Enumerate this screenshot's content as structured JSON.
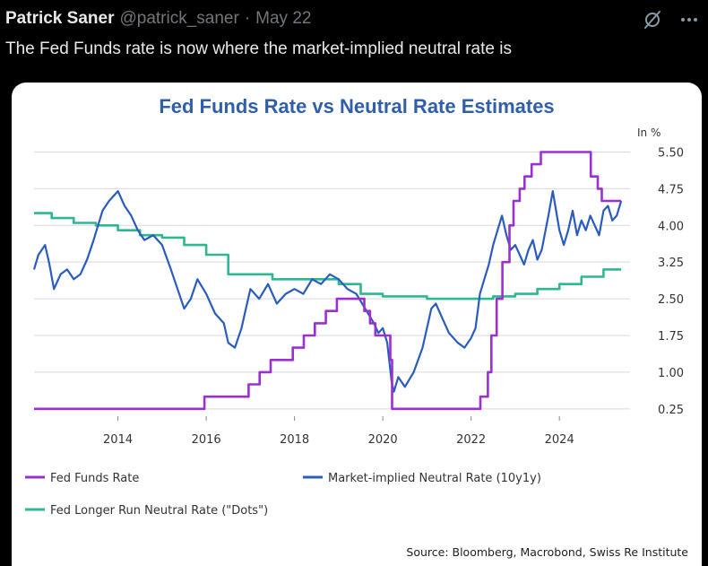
{
  "post": {
    "author_name": "Patrick Saner",
    "handle": "@patrick_saner",
    "separator": "·",
    "date": "May 22",
    "text": "The Fed Funds rate is now where the market-implied neutral rate is"
  },
  "icons": {
    "grok": "grok-slash-icon",
    "more": "more-dots-icon"
  },
  "colors": {
    "background": "#000000",
    "title": "#2f5fa8",
    "fed_funds": "#9b30d0",
    "market_implied": "#2a5cbf",
    "dots": "#2db893",
    "grid": "#d9d9d9"
  },
  "chart_data": {
    "type": "line",
    "title": "Fed Funds Rate vs Neutral Rate Estimates",
    "unit_label": "In %",
    "xlim": [
      2012.1,
      2025.6
    ],
    "ylim": [
      0.1,
      5.6
    ],
    "x_ticks": [
      "2014",
      "2016",
      "2018",
      "2020",
      "2022",
      "2024"
    ],
    "y_ticks": [
      "5.50",
      "4.75",
      "4.00",
      "3.25",
      "2.50",
      "1.75",
      "1.00",
      "0.25"
    ],
    "grid": "horizontal",
    "legend_position": "bottom",
    "source": "Source: Bloomberg, Macrobond, Swiss Re Institute",
    "series": [
      {
        "name": "Fed Funds Rate",
        "color": "#9b30d0",
        "step": true,
        "x": [
          2012.1,
          2015.96,
          2016.96,
          2017.21,
          2017.46,
          2017.96,
          2018.21,
          2018.46,
          2018.71,
          2018.96,
          2019.58,
          2019.71,
          2019.83,
          2020.17,
          2020.21,
          2022.21,
          2022.38,
          2022.46,
          2022.58,
          2022.71,
          2022.87,
          2022.96,
          2023.1,
          2023.21,
          2023.37,
          2023.58,
          2024.71,
          2024.87,
          2024.96,
          2025.4
        ],
        "y": [
          0.25,
          0.5,
          0.75,
          1.0,
          1.25,
          1.5,
          1.75,
          2.0,
          2.25,
          2.5,
          2.25,
          2.0,
          1.75,
          1.25,
          0.25,
          0.5,
          1.0,
          1.75,
          2.5,
          3.25,
          4.0,
          4.5,
          4.75,
          5.0,
          5.25,
          5.5,
          5.0,
          4.75,
          4.5,
          4.5
        ]
      },
      {
        "name": "Market-implied Neutral Rate (10y1y)",
        "color": "#2a5cbf",
        "step": false,
        "x": [
          2012.1,
          2012.2,
          2012.35,
          2012.45,
          2012.55,
          2012.7,
          2012.85,
          2013.0,
          2013.15,
          2013.3,
          2013.45,
          2013.55,
          2013.65,
          2013.8,
          2014.0,
          2014.15,
          2014.3,
          2014.45,
          2014.6,
          2014.8,
          2015.0,
          2015.2,
          2015.35,
          2015.5,
          2015.65,
          2015.8,
          2016.0,
          2016.2,
          2016.4,
          2016.5,
          2016.65,
          2016.8,
          2016.9,
          2017.0,
          2017.2,
          2017.4,
          2017.6,
          2017.8,
          2018.0,
          2018.2,
          2018.4,
          2018.6,
          2018.8,
          2019.0,
          2019.2,
          2019.4,
          2019.6,
          2019.8,
          2019.9,
          2020.0,
          2020.1,
          2020.2,
          2020.25,
          2020.35,
          2020.5,
          2020.7,
          2020.9,
          2021.1,
          2021.2,
          2021.35,
          2021.5,
          2021.7,
          2021.85,
          2022.0,
          2022.1,
          2022.2,
          2022.3,
          2022.4,
          2022.5,
          2022.6,
          2022.7,
          2022.8,
          2022.9,
          2023.0,
          2023.1,
          2023.2,
          2023.3,
          2023.4,
          2023.5,
          2023.6,
          2023.75,
          2023.85,
          2024.0,
          2024.1,
          2024.2,
          2024.3,
          2024.4,
          2024.5,
          2024.6,
          2024.7,
          2024.8,
          2024.9,
          2025.0,
          2025.1,
          2025.2,
          2025.3,
          2025.4
        ],
        "y": [
          3.1,
          3.4,
          3.6,
          3.2,
          2.7,
          3.0,
          3.1,
          2.9,
          3.0,
          3.3,
          3.7,
          4.0,
          4.3,
          4.5,
          4.7,
          4.4,
          4.2,
          3.9,
          3.7,
          3.8,
          3.6,
          3.1,
          2.7,
          2.3,
          2.5,
          2.9,
          2.6,
          2.2,
          2.0,
          1.6,
          1.5,
          1.9,
          2.3,
          2.7,
          2.5,
          2.8,
          2.4,
          2.6,
          2.7,
          2.6,
          2.9,
          2.8,
          3.0,
          2.9,
          2.7,
          2.6,
          2.3,
          2.0,
          1.8,
          1.9,
          1.6,
          0.8,
          0.6,
          0.9,
          0.7,
          1.0,
          1.5,
          2.3,
          2.4,
          2.1,
          1.8,
          1.6,
          1.5,
          1.7,
          1.9,
          2.6,
          2.9,
          3.2,
          3.6,
          3.9,
          4.2,
          3.8,
          3.5,
          3.6,
          3.4,
          3.2,
          3.5,
          3.7,
          3.3,
          3.5,
          4.2,
          4.7,
          3.9,
          3.6,
          3.9,
          4.3,
          3.8,
          4.1,
          3.9,
          4.2,
          4.0,
          3.8,
          4.3,
          4.4,
          4.1,
          4.2,
          4.5
        ]
      },
      {
        "name": "Fed Longer Run Neutral Rate (\"Dots\")",
        "color": "#2db893",
        "step": true,
        "x": [
          2012.1,
          2012.5,
          2013.0,
          2013.5,
          2014.0,
          2014.5,
          2015.0,
          2015.5,
          2016.0,
          2016.5,
          2017.0,
          2017.5,
          2018.0,
          2018.5,
          2019.0,
          2019.5,
          2020.0,
          2021.0,
          2022.0,
          2022.5,
          2023.0,
          2023.5,
          2024.0,
          2024.5,
          2025.0,
          2025.4
        ],
        "y": [
          4.25,
          4.15,
          4.05,
          4.0,
          3.9,
          3.8,
          3.75,
          3.6,
          3.4,
          3.0,
          3.0,
          2.9,
          2.9,
          2.9,
          2.8,
          2.6,
          2.55,
          2.5,
          2.5,
          2.55,
          2.6,
          2.7,
          2.8,
          2.95,
          3.1,
          3.1
        ]
      }
    ]
  }
}
